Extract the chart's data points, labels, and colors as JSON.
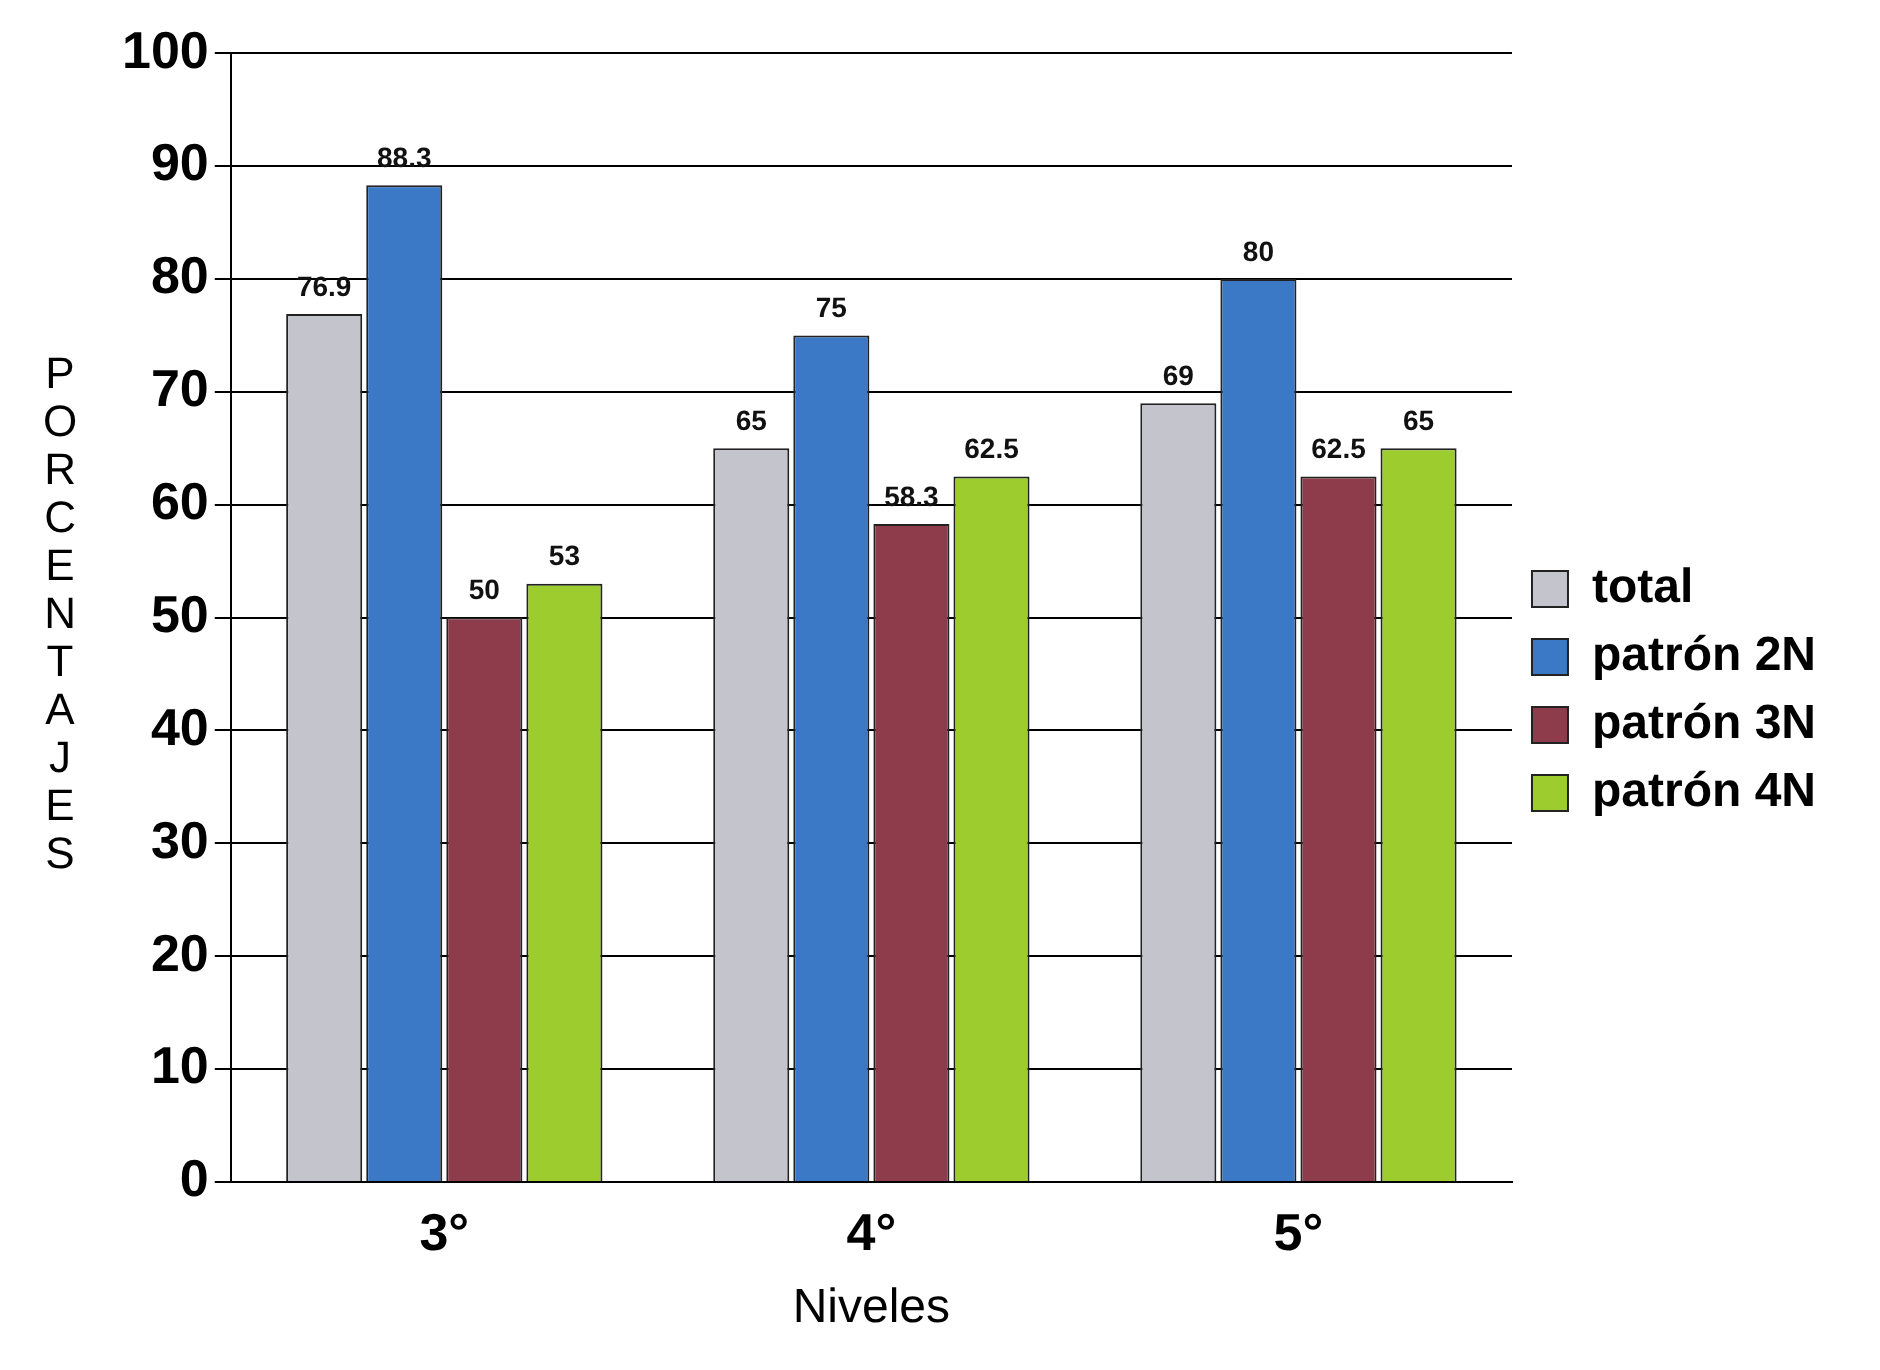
{
  "chart_data": {
    "type": "bar",
    "xlabel": "Niveles",
    "ylabel": "PORCENTAJES",
    "categories": [
      "3°",
      "4°",
      "5°"
    ],
    "series": [
      {
        "name": "total",
        "color": "#c4c4cc",
        "values": [
          76.9,
          65,
          69
        ]
      },
      {
        "name": "patrón 2N",
        "color": "#3b78c6",
        "values": [
          88.3,
          75,
          80
        ]
      },
      {
        "name": "patrón 3N",
        "color": "#8e3b4c",
        "values": [
          50,
          58.3,
          62.5
        ]
      },
      {
        "name": "patrón 4N",
        "color": "#9ccc2e",
        "values": [
          53,
          62.5,
          65
        ]
      }
    ],
    "ylim": [
      0,
      100
    ],
    "yticks": [
      0,
      10,
      20,
      30,
      40,
      50,
      60,
      70,
      80,
      90,
      100
    ],
    "grid": "y",
    "legend": "right",
    "data_labels": true
  }
}
